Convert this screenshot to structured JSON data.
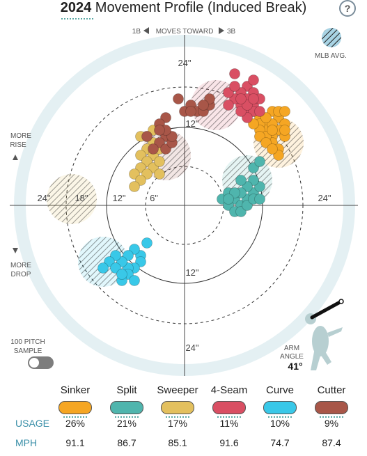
{
  "header": {
    "year": "2024",
    "title": "Movement Profile (Induced Break)",
    "help_label": "?"
  },
  "direction": {
    "left_label": "1B",
    "middle_label": "MOVES TOWARD",
    "right_label": "3B"
  },
  "mlb_avg_label": "MLB AVG.",
  "more_rise_label": [
    "MORE",
    "RISE"
  ],
  "more_drop_label": [
    "MORE",
    "DROP"
  ],
  "sample_toggle_label": [
    "100 PITCH",
    "SAMPLE"
  ],
  "arm_angle": {
    "label": [
      "ARM",
      "ANGLE"
    ],
    "value": "41°"
  },
  "chart_data": {
    "type": "scatter",
    "title": "Movement Profile (Induced Break)",
    "xlabel": "",
    "ylabel": "",
    "xlim": [
      -27,
      27
    ],
    "ylim": [
      -27,
      27
    ],
    "ring_labels": {
      "top": [
        "24\"",
        "12\""
      ],
      "bottom": [
        "12\"",
        "24\""
      ],
      "left": [
        "24\"",
        "18\"",
        "12\"",
        "6\""
      ],
      "right": [
        "24\""
      ]
    },
    "series": [
      {
        "name": "Sinker",
        "color": "#f5a623",
        "avg": [
          15,
          10
        ],
        "points": [
          [
            11,
            15
          ],
          [
            12,
            14
          ],
          [
            13,
            13
          ],
          [
            14,
            15
          ],
          [
            15,
            14
          ],
          [
            16,
            13
          ],
          [
            15,
            12
          ],
          [
            14,
            11
          ],
          [
            13,
            12
          ],
          [
            12,
            13
          ],
          [
            14,
            13
          ],
          [
            15,
            15
          ],
          [
            16,
            15
          ],
          [
            13,
            14
          ],
          [
            12,
            12
          ],
          [
            14,
            10
          ],
          [
            15,
            9
          ],
          [
            13,
            11
          ],
          [
            11,
            13
          ],
          [
            12,
            11
          ],
          [
            14,
            12
          ],
          [
            16,
            11
          ],
          [
            15,
            8
          ],
          [
            13,
            10
          ],
          [
            14,
            9
          ],
          [
            16,
            12
          ]
        ]
      },
      {
        "name": "Split",
        "color": "#4fb5ad",
        "avg": [
          10,
          4
        ],
        "points": [
          [
            6,
            1
          ],
          [
            7,
            2
          ],
          [
            8,
            1
          ],
          [
            9,
            0
          ],
          [
            10,
            1
          ],
          [
            11,
            2
          ],
          [
            12,
            3
          ],
          [
            11,
            4
          ],
          [
            10,
            3
          ],
          [
            9,
            2
          ],
          [
            8,
            2
          ],
          [
            7,
            0
          ],
          [
            8,
            -1
          ],
          [
            9,
            -1
          ],
          [
            10,
            0
          ],
          [
            11,
            1
          ],
          [
            12,
            1
          ],
          [
            11,
            6
          ],
          [
            12,
            7
          ],
          [
            9,
            4
          ],
          [
            7,
            1
          ]
        ]
      },
      {
        "name": "Sweeper",
        "color": "#e3c05e",
        "avg": [
          -18,
          1
        ],
        "points": [
          [
            -5,
            12
          ],
          [
            -6,
            11
          ],
          [
            -7,
            11
          ],
          [
            -5,
            10
          ],
          [
            -6,
            9
          ],
          [
            -7,
            8
          ],
          [
            -5,
            8
          ],
          [
            -6,
            7
          ],
          [
            -7,
            6
          ],
          [
            -5,
            6
          ],
          [
            -6,
            5
          ],
          [
            -4,
            7
          ],
          [
            -4,
            9
          ],
          [
            -8,
            5
          ],
          [
            -7,
            4
          ],
          [
            -4,
            5
          ],
          [
            -8,
            3
          ]
        ]
      },
      {
        "name": "4-Seam",
        "color": "#d94f63",
        "avg": [
          5,
          16
        ],
        "points": [
          [
            8,
            21
          ],
          [
            10,
            19
          ],
          [
            11,
            18
          ],
          [
            9,
            18
          ],
          [
            10,
            17
          ],
          [
            11,
            16
          ],
          [
            9,
            16
          ],
          [
            10,
            15
          ],
          [
            8,
            17
          ],
          [
            7,
            18
          ],
          [
            12,
            17
          ],
          [
            11,
            15
          ],
          [
            10,
            14
          ],
          [
            9,
            15
          ],
          [
            7,
            16
          ],
          [
            11,
            20
          ],
          [
            8,
            19
          ],
          [
            12,
            15
          ],
          [
            10,
            16
          ],
          [
            9,
            17
          ],
          [
            11,
            17
          ]
        ]
      },
      {
        "name": "Curve",
        "color": "#39c8e8",
        "avg": [
          -13,
          -9
        ],
        "points": [
          [
            -6,
            -6
          ],
          [
            -7,
            -8
          ],
          [
            -8,
            -7
          ],
          [
            -9,
            -8
          ],
          [
            -7,
            -9
          ],
          [
            -8,
            -10
          ],
          [
            -9,
            -10
          ],
          [
            -10,
            -9
          ],
          [
            -11,
            -8
          ],
          [
            -12,
            -9
          ],
          [
            -13,
            -10
          ],
          [
            -9,
            -11
          ],
          [
            -8,
            -12
          ],
          [
            -10,
            -12
          ],
          [
            -11,
            -10
          ],
          [
            -10,
            -11
          ]
        ]
      },
      {
        "name": "Cutter",
        "color": "#a85648",
        "avg": [
          -3,
          8
        ],
        "points": [
          [
            -1,
            17
          ],
          [
            0,
            15
          ],
          [
            1,
            16
          ],
          [
            2,
            15
          ],
          [
            3,
            15
          ],
          [
            4,
            16
          ],
          [
            -3,
            14
          ],
          [
            -4,
            13
          ],
          [
            -3,
            11
          ],
          [
            -4,
            10
          ],
          [
            -3,
            9
          ],
          [
            -2,
            10
          ],
          [
            -5,
            9
          ],
          [
            -2,
            11
          ],
          [
            4,
            17
          ],
          [
            3,
            16
          ],
          [
            1,
            15
          ],
          [
            -6,
            11
          ],
          [
            -3,
            12
          ],
          [
            -4,
            12
          ]
        ]
      }
    ],
    "legend_placement": "bottom"
  },
  "table": {
    "row_labels": [
      "USAGE",
      "MPH"
    ],
    "columns": [
      {
        "name": "Sinker",
        "color": "#f5a623",
        "usage": "26%",
        "mph": "91.1"
      },
      {
        "name": "Split",
        "color": "#4fb5ad",
        "usage": "21%",
        "mph": "86.7"
      },
      {
        "name": "Sweeper",
        "color": "#e3c05e",
        "usage": "17%",
        "mph": "85.1"
      },
      {
        "name": "4-Seam",
        "color": "#d94f63",
        "usage": "11%",
        "mph": "91.6"
      },
      {
        "name": "Curve",
        "color": "#39c8e8",
        "usage": "10%",
        "mph": "74.7"
      },
      {
        "name": "Cutter",
        "color": "#a85648",
        "usage": "9%",
        "mph": "87.4"
      }
    ]
  }
}
